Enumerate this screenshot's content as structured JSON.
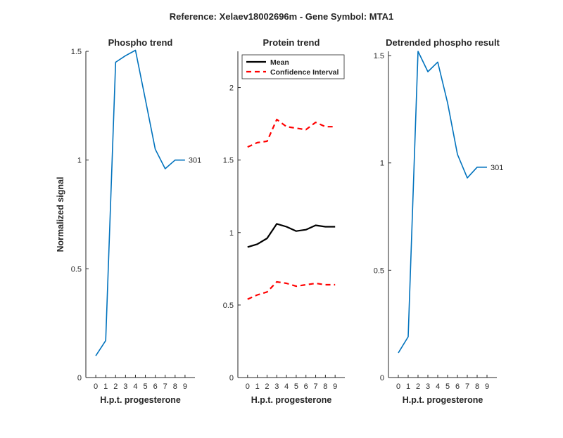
{
  "suptitle": "Reference:  Xelaev18002696m - Gene Symbol:  MTA1",
  "chart_data": [
    {
      "type": "line",
      "title": "Phospho trend",
      "xlabel": "H.p.t. progesterone",
      "ylabel": "Normalized signal",
      "xlim": [
        -1,
        10
      ],
      "ylim": [
        0,
        1.5
      ],
      "xticks": [
        "0",
        "1",
        "2",
        "3",
        "4",
        "5",
        "6",
        "7",
        "8",
        "9"
      ],
      "yticks": [
        "0",
        "0.5",
        "1",
        "1.5"
      ],
      "series": [
        {
          "color": "#0072BD",
          "x": [
            0,
            1,
            2,
            3,
            4,
            5,
            6,
            7,
            8,
            9
          ],
          "y": [
            0.1,
            0.17,
            1.45,
            1.48,
            1.505,
            1.28,
            1.05,
            0.96,
            1.0,
            1.0
          ],
          "end_label": "301"
        }
      ]
    },
    {
      "type": "line",
      "title": "Protein trend",
      "xlabel": "H.p.t. progesterone",
      "ylabel": "",
      "xlim": [
        -1,
        10
      ],
      "ylim": [
        0,
        2.25
      ],
      "xticks": [
        "0",
        "1",
        "2",
        "3",
        "4",
        "5",
        "6",
        "7",
        "8",
        "9"
      ],
      "yticks": [
        "0",
        "0.5",
        "1",
        "1.5",
        "2"
      ],
      "legend_location": "top-left",
      "series": [
        {
          "name": "Mean",
          "color": "#000000",
          "style": "solid",
          "x": [
            0,
            1,
            2,
            3,
            4,
            5,
            6,
            7,
            8,
            9
          ],
          "y": [
            0.9,
            0.92,
            0.96,
            1.06,
            1.04,
            1.01,
            1.02,
            1.05,
            1.04,
            1.04
          ]
        },
        {
          "name": "Confidence Interval",
          "color": "#FF0000",
          "style": "dashed",
          "x": [
            0,
            1,
            2,
            3,
            4,
            5,
            6,
            7,
            8,
            9
          ],
          "y": [
            1.59,
            1.62,
            1.63,
            1.78,
            1.73,
            1.72,
            1.71,
            1.76,
            1.73,
            1.73
          ]
        },
        {
          "name": "",
          "color": "#FF0000",
          "style": "dashed",
          "x": [
            0,
            1,
            2,
            3,
            4,
            5,
            6,
            7,
            8,
            9
          ],
          "y": [
            0.54,
            0.57,
            0.59,
            0.66,
            0.65,
            0.63,
            0.64,
            0.65,
            0.64,
            0.64
          ]
        }
      ]
    },
    {
      "type": "line",
      "title": "Detrended phospho result",
      "xlabel": "H.p.t. progesterone",
      "ylabel": "",
      "xlim": [
        -1,
        10
      ],
      "ylim": [
        0,
        1.52
      ],
      "xticks": [
        "0",
        "1",
        "2",
        "3",
        "4",
        "5",
        "6",
        "7",
        "8",
        "9"
      ],
      "yticks": [
        "0",
        "0.5",
        "1",
        "1.5"
      ],
      "series": [
        {
          "color": "#0072BD",
          "x": [
            0,
            1,
            2,
            3,
            4,
            5,
            6,
            7,
            8,
            9
          ],
          "y": [
            0.115,
            0.19,
            1.52,
            1.425,
            1.47,
            1.28,
            1.04,
            0.93,
            0.98,
            0.98
          ]
        }
      ],
      "end_label": "301"
    }
  ]
}
